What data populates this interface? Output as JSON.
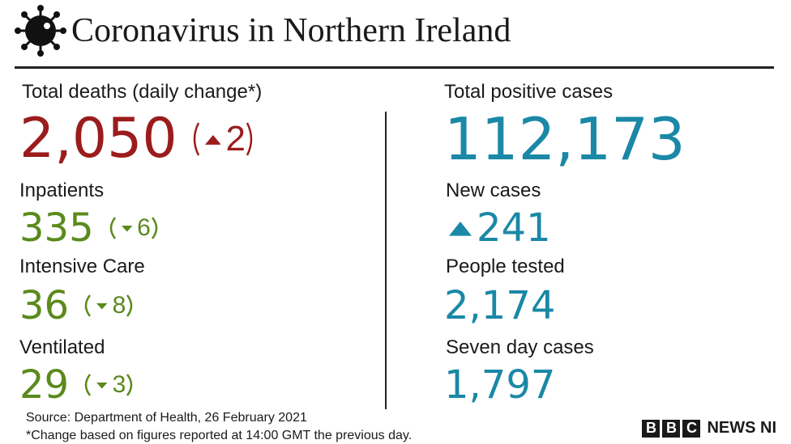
{
  "header": {
    "title": "Coronavirus in Northern Ireland"
  },
  "left": [
    {
      "label": "Total deaths (daily change*)",
      "value": "2,050",
      "change": "2",
      "direction": "up"
    },
    {
      "label": "Inpatients",
      "value": "335",
      "change": "6",
      "direction": "down"
    },
    {
      "label": "Intensive Care",
      "value": "36",
      "change": "8",
      "direction": "down"
    },
    {
      "label": "Ventilated",
      "value": "29",
      "change": "3",
      "direction": "down"
    }
  ],
  "right": [
    {
      "label": "Total positive cases",
      "value": "112,173"
    },
    {
      "label": "New cases",
      "value": "241",
      "direction": "up"
    },
    {
      "label": "People tested",
      "value": "2,174"
    },
    {
      "label": "Seven day cases",
      "value": "1,797"
    }
  ],
  "footer": {
    "source": "Source: Department of Health, 26 February 2021",
    "note": "*Change based on figures reported at 14:00 GMT the previous day."
  },
  "logo": {
    "letters": [
      "B",
      "B",
      "C"
    ],
    "text": "NEWS NI"
  }
}
